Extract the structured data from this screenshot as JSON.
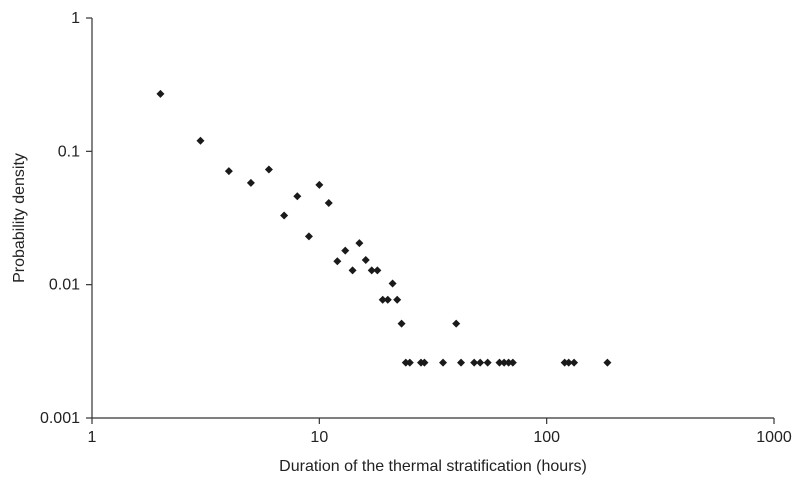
{
  "chart_data": {
    "type": "scatter",
    "title": "",
    "xlabel": "Duration of the thermal stratification (hours)",
    "ylabel": "Probability density",
    "x_scale": "log",
    "y_scale": "log",
    "xlim": [
      1,
      1000
    ],
    "ylim": [
      0.001,
      1
    ],
    "x_ticks": [
      1,
      10,
      100,
      1000
    ],
    "x_tick_labels": [
      "1",
      "10",
      "100",
      "1000"
    ],
    "y_ticks": [
      0.001,
      0.01,
      0.1,
      1
    ],
    "y_tick_labels": [
      "0.001",
      "0.01",
      "0.1",
      "1"
    ],
    "grid": false,
    "legend": "none",
    "marker": "diamond",
    "marker_color": "#1a1a1a",
    "series": [
      {
        "points": [
          [
            2,
            0.27
          ],
          [
            3,
            0.12
          ],
          [
            4,
            0.071
          ],
          [
            5,
            0.058
          ],
          [
            6,
            0.073
          ],
          [
            7,
            0.033
          ],
          [
            8,
            0.046
          ],
          [
            9,
            0.023
          ],
          [
            10,
            0.056
          ],
          [
            11,
            0.041
          ],
          [
            12,
            0.015
          ],
          [
            13,
            0.018
          ],
          [
            14,
            0.0128
          ],
          [
            15,
            0.0205
          ],
          [
            16,
            0.0153
          ],
          [
            17,
            0.0128
          ],
          [
            18,
            0.0128
          ],
          [
            19,
            0.0077
          ],
          [
            20,
            0.0077
          ],
          [
            21,
            0.0102
          ],
          [
            22,
            0.0077
          ],
          [
            23,
            0.0051
          ],
          [
            24,
            0.0026
          ],
          [
            25,
            0.0026
          ],
          [
            28,
            0.0026
          ],
          [
            29,
            0.0026
          ],
          [
            35,
            0.0026
          ],
          [
            40,
            0.0051
          ],
          [
            42,
            0.0026
          ],
          [
            48,
            0.0026
          ],
          [
            51,
            0.0026
          ],
          [
            55,
            0.0026
          ],
          [
            62,
            0.0026
          ],
          [
            65,
            0.0026
          ],
          [
            68,
            0.0026
          ],
          [
            71,
            0.0026
          ],
          [
            120,
            0.0026
          ],
          [
            125,
            0.0026
          ],
          [
            132,
            0.0026
          ],
          [
            185,
            0.0026
          ]
        ]
      }
    ]
  }
}
